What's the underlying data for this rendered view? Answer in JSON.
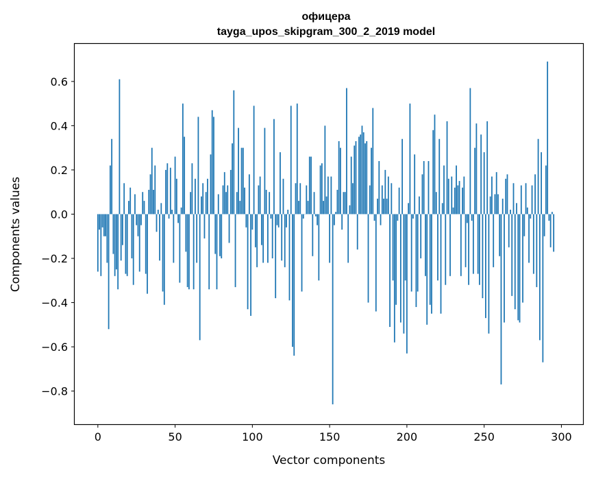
{
  "chart_data": {
    "type": "bar",
    "title": "офицера",
    "subtitle": "tayga_upos_skipgram_300_2_2019 model",
    "xlabel": "Vector components",
    "ylabel": "Components values",
    "xlim": [
      -15,
      314
    ],
    "ylim": [
      -0.95,
      0.77
    ],
    "xticks": [
      0,
      50,
      100,
      150,
      200,
      250,
      300
    ],
    "xtick_labels": [
      "0",
      "50",
      "100",
      "150",
      "200",
      "250",
      "300"
    ],
    "yticks": [
      -0.8,
      -0.6,
      -0.4,
      -0.2,
      0.0,
      0.2,
      0.4,
      0.6
    ],
    "ytick_labels": [
      "−0.8",
      "−0.6",
      "−0.4",
      "−0.2",
      "0.0",
      "0.2",
      "0.4",
      "0.6"
    ],
    "grid": false,
    "bar_color": "#1f77b4",
    "values": [
      -0.26,
      -0.07,
      -0.28,
      -0.06,
      -0.1,
      -0.1,
      -0.22,
      -0.52,
      0.22,
      0.34,
      -0.18,
      -0.28,
      -0.25,
      -0.34,
      0.61,
      -0.21,
      -0.14,
      0.14,
      -0.27,
      -0.28,
      0.06,
      0.12,
      -0.2,
      -0.32,
      0.09,
      -0.05,
      -0.1,
      -0.26,
      -0.05,
      0.1,
      0.06,
      -0.27,
      -0.36,
      0.11,
      0.18,
      0.3,
      0.11,
      0.22,
      -0.08,
      0.02,
      -0.21,
      0.05,
      -0.35,
      -0.41,
      0.2,
      0.23,
      -0.02,
      0.21,
      0.02,
      -0.22,
      0.26,
      0.16,
      -0.04,
      -0.31,
      0.03,
      0.5,
      0.35,
      -0.17,
      -0.33,
      -0.34,
      0.1,
      0.23,
      -0.34,
      0.16,
      -0.22,
      0.44,
      -0.57,
      0.08,
      0.14,
      -0.11,
      0.1,
      0.16,
      -0.34,
      0.27,
      0.47,
      0.44,
      -0.18,
      -0.34,
      0.09,
      -0.19,
      -0.2,
      0.13,
      0.19,
      0.1,
      0.13,
      -0.13,
      0.2,
      0.32,
      0.56,
      -0.33,
      0.1,
      0.39,
      0.06,
      0.3,
      0.3,
      0.12,
      -0.06,
      -0.43,
      0.18,
      -0.46,
      -0.07,
      0.49,
      -0.15,
      -0.24,
      0.13,
      0.17,
      -0.14,
      -0.22,
      0.39,
      0.11,
      -0.22,
      0.1,
      -0.02,
      -0.2,
      0.43,
      -0.38,
      -0.05,
      -0.06,
      0.28,
      -0.21,
      0.16,
      -0.24,
      -0.06,
      0.02,
      -0.39,
      0.49,
      -0.6,
      -0.64,
      0.14,
      0.5,
      0.06,
      0.14,
      -0.35,
      -0.02,
      0.0,
      0.13,
      0.06,
      0.26,
      0.26,
      -0.19,
      0.1,
      -0.01,
      -0.05,
      -0.3,
      0.22,
      0.23,
      0.06,
      0.4,
      0.08,
      0.17,
      -0.22,
      0.17,
      -0.86,
      -0.05,
      0.01,
      0.11,
      0.33,
      0.3,
      -0.07,
      0.1,
      0.1,
      0.57,
      -0.22,
      0.04,
      0.26,
      0.14,
      0.31,
      0.33,
      -0.16,
      0.35,
      0.36,
      0.4,
      0.37,
      0.32,
      0.33,
      -0.4,
      0.13,
      0.3,
      0.48,
      -0.03,
      -0.44,
      0.07,
      0.24,
      -0.05,
      0.13,
      0.07,
      0.2,
      0.07,
      0.17,
      -0.51,
      0.14,
      -0.3,
      -0.58,
      -0.41,
      -0.03,
      0.12,
      -0.49,
      0.34,
      -0.54,
      -0.3,
      -0.63,
      0.05,
      0.5,
      -0.35,
      -0.02,
      0.27,
      -0.42,
      -0.35,
      0.08,
      -0.2,
      0.18,
      0.24,
      -0.28,
      -0.5,
      0.24,
      -0.41,
      -0.45,
      0.38,
      0.45,
      0.1,
      -0.3,
      0.34,
      -0.45,
      0.05,
      0.22,
      -0.32,
      0.42,
      0.16,
      -0.28,
      0.17,
      0.03,
      0.12,
      0.22,
      0.13,
      0.15,
      -0.28,
      0.12,
      0.17,
      -0.24,
      -0.04,
      -0.32,
      0.57,
      -0.03,
      -0.27,
      0.3,
      0.41,
      -0.27,
      -0.32,
      0.36,
      -0.38,
      0.28,
      -0.47,
      0.42,
      -0.54,
      0.08,
      0.17,
      -0.24,
      0.09,
      0.19,
      0.09,
      -0.19,
      -0.77,
      0.07,
      -0.49,
      0.16,
      0.18,
      -0.15,
      0.02,
      -0.37,
      0.14,
      -0.43,
      0.05,
      -0.48,
      -0.49,
      0.13,
      -0.4,
      -0.1,
      0.14,
      0.03,
      -0.22,
      -0.02,
      0.13,
      -0.27,
      0.18,
      -0.33,
      0.34,
      -0.57,
      0.28,
      -0.67,
      -0.1,
      0.22,
      0.69,
      -0.03,
      -0.15,
      0.01,
      -0.17
    ]
  }
}
